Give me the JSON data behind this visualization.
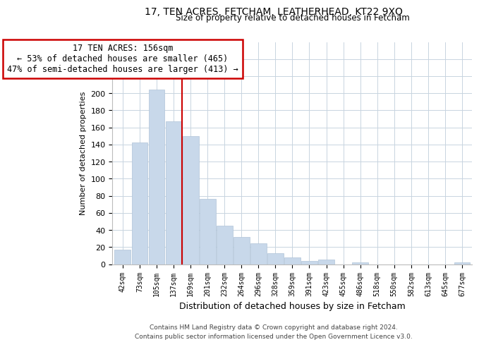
{
  "title": "17, TEN ACRES, FETCHAM, LEATHERHEAD, KT22 9XQ",
  "subtitle": "Size of property relative to detached houses in Fetcham",
  "xlabel": "Distribution of detached houses by size in Fetcham",
  "ylabel": "Number of detached properties",
  "bar_labels": [
    "42sqm",
    "73sqm",
    "105sqm",
    "137sqm",
    "169sqm",
    "201sqm",
    "232sqm",
    "264sqm",
    "296sqm",
    "328sqm",
    "359sqm",
    "391sqm",
    "423sqm",
    "455sqm",
    "486sqm",
    "518sqm",
    "550sqm",
    "582sqm",
    "613sqm",
    "645sqm",
    "677sqm"
  ],
  "bar_values": [
    17,
    142,
    204,
    167,
    150,
    76,
    45,
    32,
    24,
    13,
    8,
    4,
    5,
    0,
    2,
    0,
    0,
    0,
    0,
    0,
    2
  ],
  "bar_color": "#c8d8ea",
  "bar_edge_color": "#b0c4d8",
  "vline_color": "#cc0000",
  "vline_x": 3.5,
  "ylim": [
    0,
    260
  ],
  "yticks": [
    0,
    20,
    40,
    60,
    80,
    100,
    120,
    140,
    160,
    180,
    200,
    220,
    240,
    260
  ],
  "ann_line1": "17 TEN ACRES: 156sqm",
  "ann_line2": "← 53% of detached houses are smaller (465)",
  "ann_line3": "47% of semi-detached houses are larger (413) →",
  "annotation_box_color": "#ffffff",
  "annotation_box_edge": "#cc0000",
  "footer_line1": "Contains HM Land Registry data © Crown copyright and database right 2024.",
  "footer_line2": "Contains public sector information licensed under the Open Government Licence v3.0.",
  "background_color": "#ffffff",
  "grid_color": "#c8d4e0"
}
